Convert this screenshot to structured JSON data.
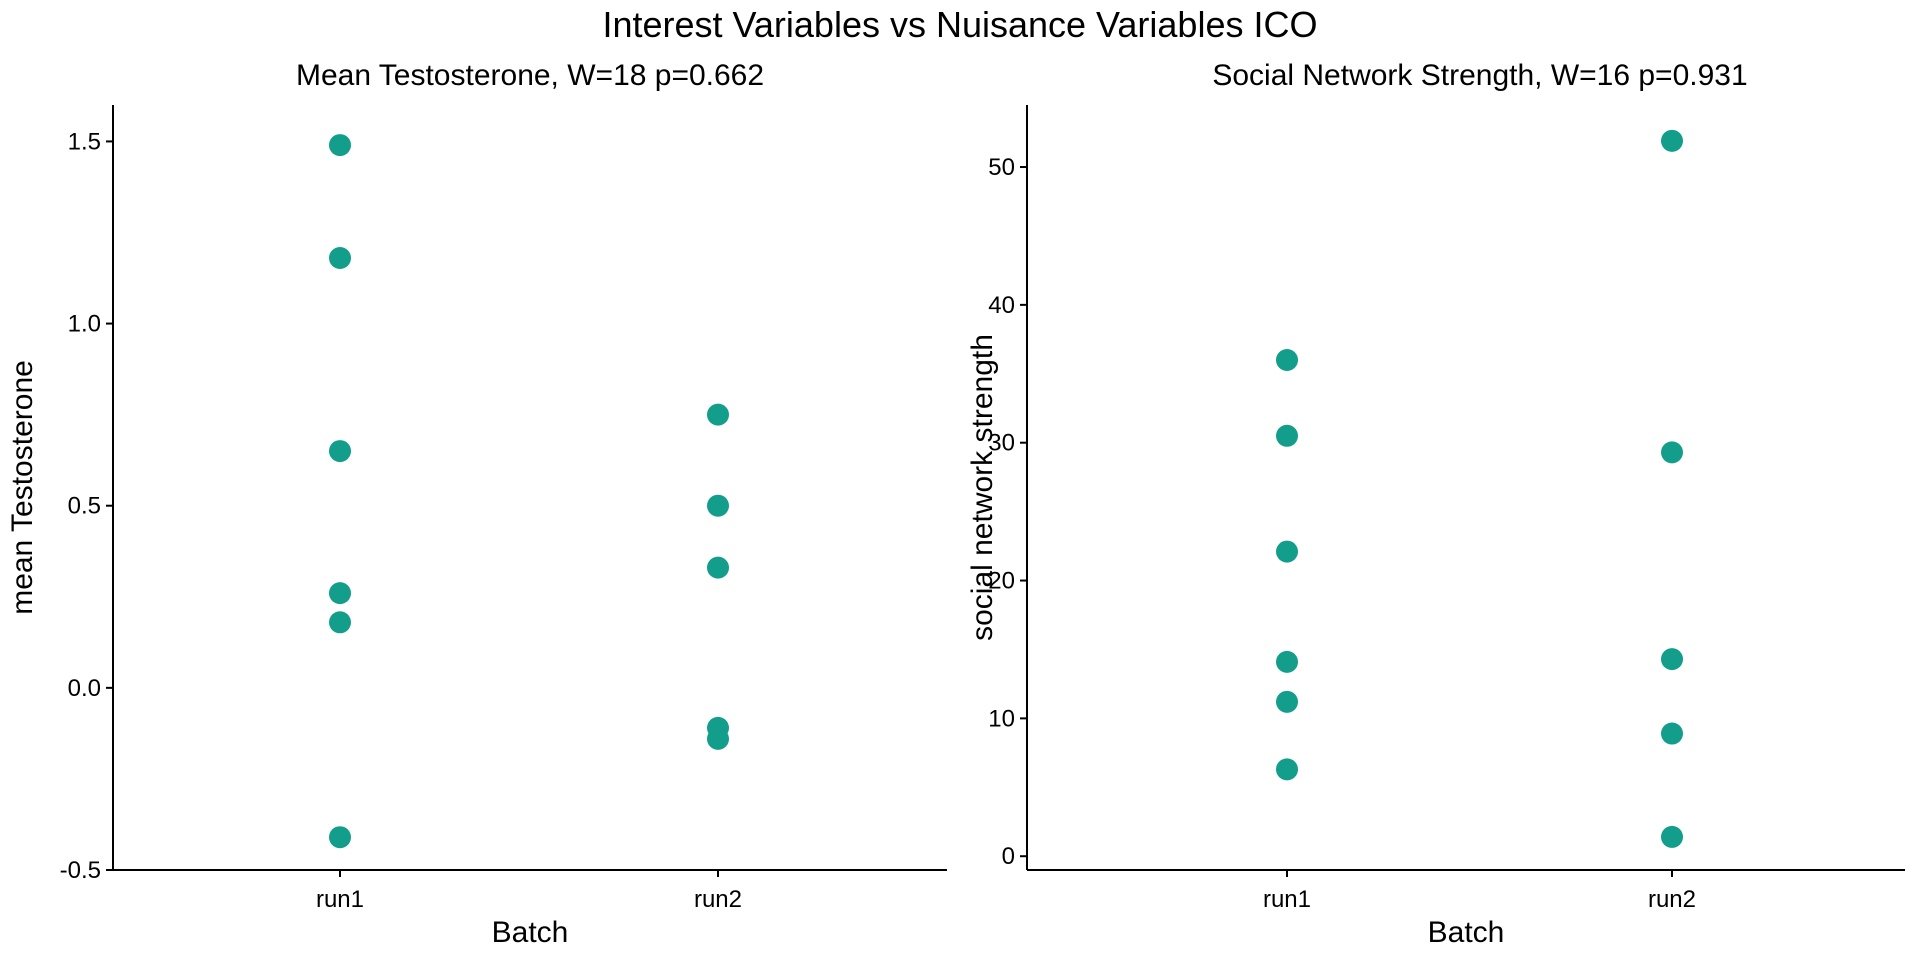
{
  "figure": {
    "title": "Interest Variables vs Nuisance Variables ICO"
  },
  "colors": {
    "point": "#129E8A",
    "axis": "#000000",
    "background": "#FFFFFF"
  },
  "chart_data": [
    {
      "type": "scatter",
      "title": "Mean Testosterone, W=18 p=0.662",
      "xlabel": "Batch",
      "ylabel": "mean Testosterone",
      "categories": [
        "run1",
        "run2"
      ],
      "ylim": [
        -0.5,
        1.6
      ],
      "yticks": [
        -0.5,
        0.0,
        0.5,
        1.0,
        1.5
      ],
      "ytick_labels": [
        "-0.5",
        "0.0",
        "0.5",
        "1.0",
        "1.5"
      ],
      "grid": false,
      "legend": "none",
      "points": [
        {
          "x": "run1",
          "y": 1.49
        },
        {
          "x": "run1",
          "y": 1.18
        },
        {
          "x": "run1",
          "y": 0.65
        },
        {
          "x": "run1",
          "y": 0.26
        },
        {
          "x": "run1",
          "y": 0.18
        },
        {
          "x": "run1",
          "y": -0.41
        },
        {
          "x": "run2",
          "y": 0.75
        },
        {
          "x": "run2",
          "y": 0.5
        },
        {
          "x": "run2",
          "y": 0.33
        },
        {
          "x": "run2",
          "y": -0.11
        },
        {
          "x": "run2",
          "y": -0.14
        }
      ]
    },
    {
      "type": "scatter",
      "title": "Social Network Strength, W=16 p=0.931",
      "xlabel": "Batch",
      "ylabel": "social network strength",
      "categories": [
        "run1",
        "run2"
      ],
      "ylim": [
        -1,
        54.5
      ],
      "yticks": [
        0,
        10,
        20,
        30,
        40,
        50
      ],
      "ytick_labels": [
        "0",
        "10",
        "20",
        "30",
        "40",
        "50"
      ],
      "grid": false,
      "legend": "none",
      "points": [
        {
          "x": "run1",
          "y": 36.0
        },
        {
          "x": "run1",
          "y": 30.5
        },
        {
          "x": "run1",
          "y": 22.1
        },
        {
          "x": "run1",
          "y": 14.1
        },
        {
          "x": "run1",
          "y": 11.2
        },
        {
          "x": "run1",
          "y": 6.3
        },
        {
          "x": "run2",
          "y": 51.9
        },
        {
          "x": "run2",
          "y": 29.3
        },
        {
          "x": "run2",
          "y": 14.3
        },
        {
          "x": "run2",
          "y": 8.9
        },
        {
          "x": "run2",
          "y": 1.4
        }
      ]
    }
  ]
}
